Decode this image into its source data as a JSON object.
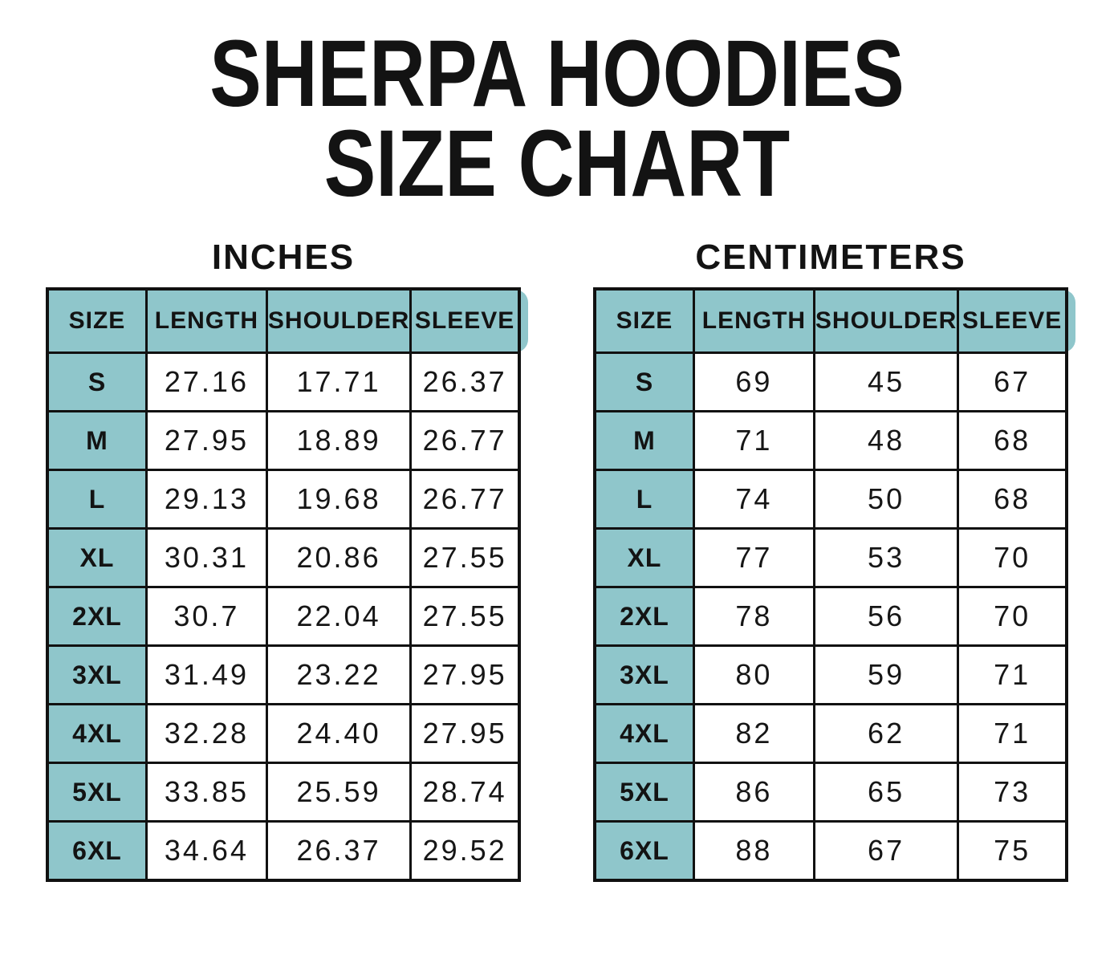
{
  "title": {
    "line1": "SHERPA HOODIES",
    "line2": "SIZE CHART"
  },
  "chart_data": [
    {
      "type": "table",
      "title": "INCHES",
      "columns": [
        "SIZE",
        "LENGTH",
        "SHOULDER",
        "SLEEVE"
      ],
      "rows": [
        [
          "S",
          "27.16",
          "17.71",
          "26.37"
        ],
        [
          "M",
          "27.95",
          "18.89",
          "26.77"
        ],
        [
          "L",
          "29.13",
          "19.68",
          "26.77"
        ],
        [
          "XL",
          "30.31",
          "20.86",
          "27.55"
        ],
        [
          "2XL",
          "30.7",
          "22.04",
          "27.55"
        ],
        [
          "3XL",
          "31.49",
          "23.22",
          "27.95"
        ],
        [
          "4XL",
          "32.28",
          "24.40",
          "27.95"
        ],
        [
          "5XL",
          "33.85",
          "25.59",
          "28.74"
        ],
        [
          "6XL",
          "34.64",
          "26.37",
          "29.52"
        ]
      ]
    },
    {
      "type": "table",
      "title": "CENTIMETERS",
      "columns": [
        "SIZE",
        "LENGTH",
        "SHOULDER",
        "SLEEVE"
      ],
      "rows": [
        [
          "S",
          "69",
          "45",
          "67"
        ],
        [
          "M",
          "71",
          "48",
          "68"
        ],
        [
          "L",
          "74",
          "50",
          "68"
        ],
        [
          "XL",
          "77",
          "53",
          "70"
        ],
        [
          "2XL",
          "78",
          "56",
          "70"
        ],
        [
          "3XL",
          "80",
          "59",
          "71"
        ],
        [
          "4XL",
          "82",
          "62",
          "71"
        ],
        [
          "5XL",
          "86",
          "65",
          "73"
        ],
        [
          "6XL",
          "88",
          "67",
          "75"
        ]
      ]
    }
  ],
  "colors": {
    "header_fill": "#8FC6CB",
    "grid_line": "#111111",
    "text": "#161616",
    "background": "#ffffff"
  }
}
